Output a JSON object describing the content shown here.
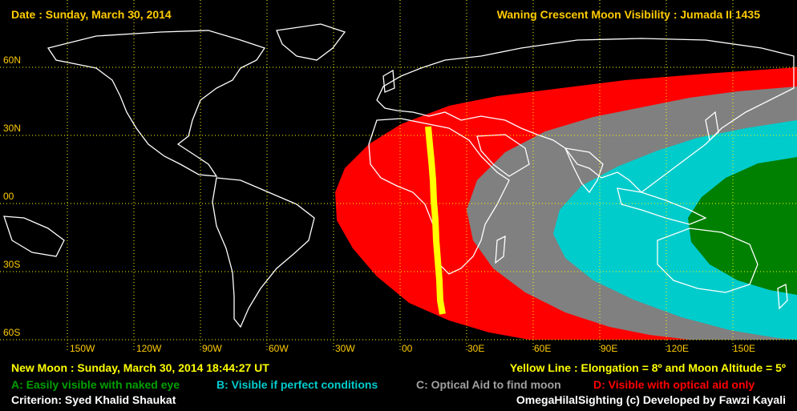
{
  "header": {
    "date": "Date : Sunday, March 30, 2014",
    "title": "Waning Crescent Moon Visibility : Jumada II 1435"
  },
  "map": {
    "lat_labels": [
      "60N",
      "30N",
      "00",
      "30S",
      "60S"
    ],
    "lon_labels": [
      "150W",
      "120W",
      "90W",
      "60W",
      "30W",
      "00",
      "30E",
      "60E",
      "90E",
      "120E",
      "150E"
    ],
    "zones": [
      {
        "code": "A",
        "color": "#008000"
      },
      {
        "code": "B",
        "color": "#00CCCC"
      },
      {
        "code": "C",
        "color": "#808080"
      },
      {
        "code": "D",
        "color": "#FF0000"
      }
    ],
    "yellow_line_color": "#FFFF00",
    "grid_color": "#FFFF00",
    "land_outline_color": "#FFFFFF"
  },
  "footer": {
    "new_moon": "New Moon : Sunday, March 30, 2014  18:44:27  UT",
    "yellow_line": "Yellow Line : Elongation = 8º  and Moon Altitude = 5º",
    "legend": {
      "a": "A: Easily visible with naked eye",
      "b": "B: Visible if perfect conditions",
      "c": "C: Optical Aid to find moon",
      "d": "D: Visible with optical aid only"
    },
    "criterion": "Criterion: Syed Khalid Shaukat",
    "credit": "OmegaHilalSighting  (c)  Developed by Fawzi Kayali"
  },
  "colors": {
    "header_text": "#FFCC00",
    "footer_yellow": "#FFFF00",
    "legend_a": "#00A000",
    "legend_b": "#00CCCC",
    "legend_c": "#A0A0A0",
    "legend_d": "#FF0000",
    "white": "#FFFFFF"
  }
}
